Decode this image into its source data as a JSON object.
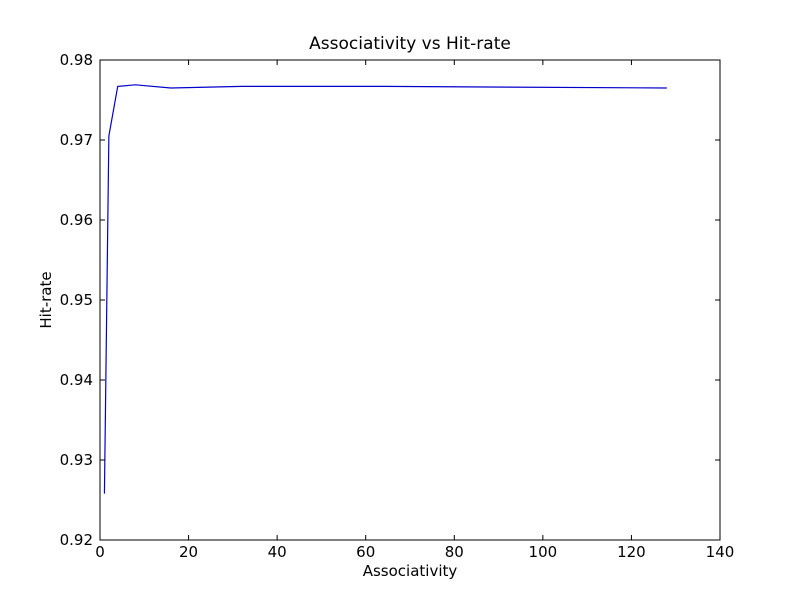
{
  "chart_data": {
    "type": "line",
    "title": "Associativity vs Hit-rate",
    "xlabel": "Associativity",
    "ylabel": "Hit-rate",
    "xlim": [
      0,
      140
    ],
    "ylim": [
      0.92,
      0.98
    ],
    "xticks": [
      0,
      20,
      40,
      60,
      80,
      100,
      120,
      140
    ],
    "xtick_labels": [
      "0",
      "20",
      "40",
      "60",
      "80",
      "100",
      "120",
      "140"
    ],
    "yticks": [
      0.92,
      0.93,
      0.94,
      0.95,
      0.96,
      0.97,
      0.98
    ],
    "ytick_labels": [
      "0.92",
      "0.93",
      "0.94",
      "0.95",
      "0.96",
      "0.97",
      "0.98"
    ],
    "grid": false,
    "series": [
      {
        "color": "#0000cc",
        "x": [
          1,
          2,
          4,
          8,
          16,
          32,
          64,
          128
        ],
        "y": [
          0.9258,
          0.9705,
          0.9767,
          0.9769,
          0.9765,
          0.9767,
          0.9767,
          0.9765
        ]
      }
    ]
  }
}
